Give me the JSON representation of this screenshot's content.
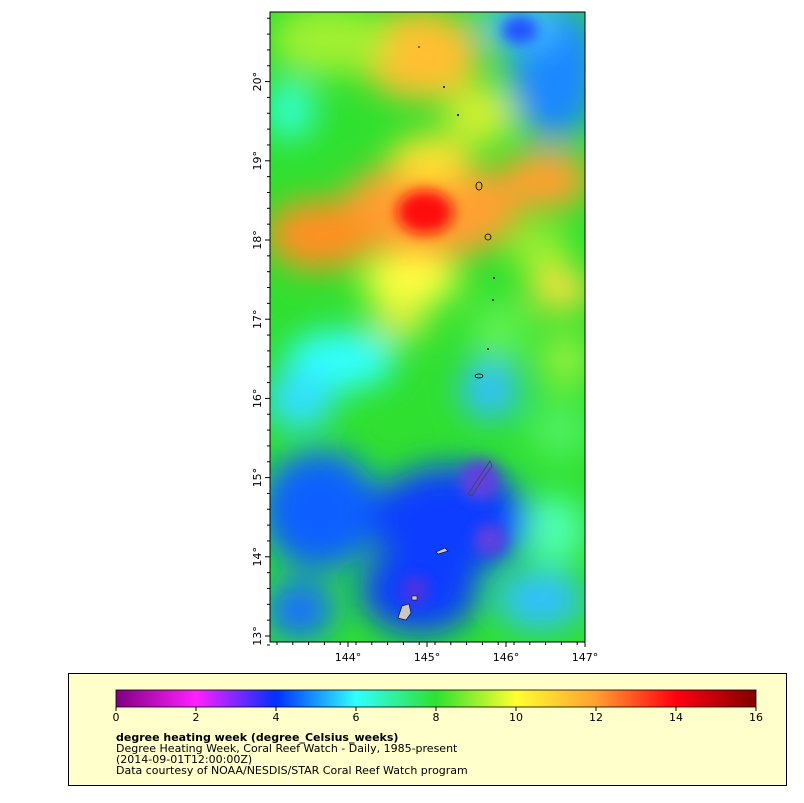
{
  "map": {
    "y_tick_labels": [
      "13°",
      "14°",
      "15°",
      "16°",
      "17°",
      "18°",
      "19°",
      "20°"
    ],
    "x_tick_labels": [
      "144°",
      "145°",
      "146°",
      "147°"
    ],
    "colors": {
      "land": "#c8c8c8",
      "coast": "#000000"
    }
  },
  "colorbar": {
    "tick_labels": [
      "0",
      "2",
      "4",
      "6",
      "8",
      "10",
      "12",
      "14",
      "16"
    ],
    "colors": [
      "#800080",
      "#ff20ff",
      "#0030ff",
      "#30ffff",
      "#30e030",
      "#ffff30",
      "#ffa030",
      "#ff0010",
      "#800000"
    ]
  },
  "legend": {
    "title": "degree heating week (degree_Celsius_weeks)",
    "line1": "Degree Heating Week, Coral Reef Watch - Daily, 1985-present",
    "line2": "(2014-09-01T12:00:00Z)",
    "line3": "Data courtesy of NOAA/NESDIS/STAR Coral Reef Watch program"
  }
}
